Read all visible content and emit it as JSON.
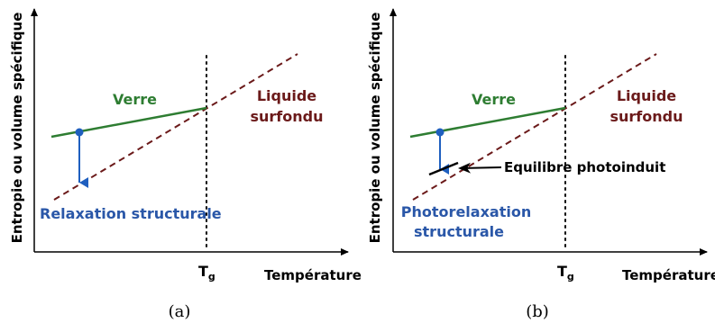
{
  "panels": [
    {
      "caption": "(a)",
      "ylabel": "Entropie ou volume spécifique",
      "xlabel": "Température",
      "tg_main": "T",
      "tg_sub": "g",
      "glass_label": "Verre",
      "liquid_label_line1": "Liquide",
      "liquid_label_line2": "surfondu",
      "relax_label_line1": "Relaxation structurale",
      "relax_label_line2": ""
    },
    {
      "caption": "(b)",
      "ylabel": "Entropie ou volume spécifique",
      "xlabel": "Température",
      "tg_main": "T",
      "tg_sub": "g",
      "glass_label": "Verre",
      "liquid_label_line1": "Liquide",
      "liquid_label_line2": "surfondu",
      "relax_label_line1": "Photorelaxation",
      "relax_label_line2": "structurale",
      "equilibrium_label": "Equilibre photoinduit"
    }
  ],
  "colors": {
    "axis": "#000000",
    "glass": "#2e7d32",
    "liquid": "#6b1a1a",
    "relax": "#2a57a8",
    "arrow": "#1f5fbf"
  }
}
